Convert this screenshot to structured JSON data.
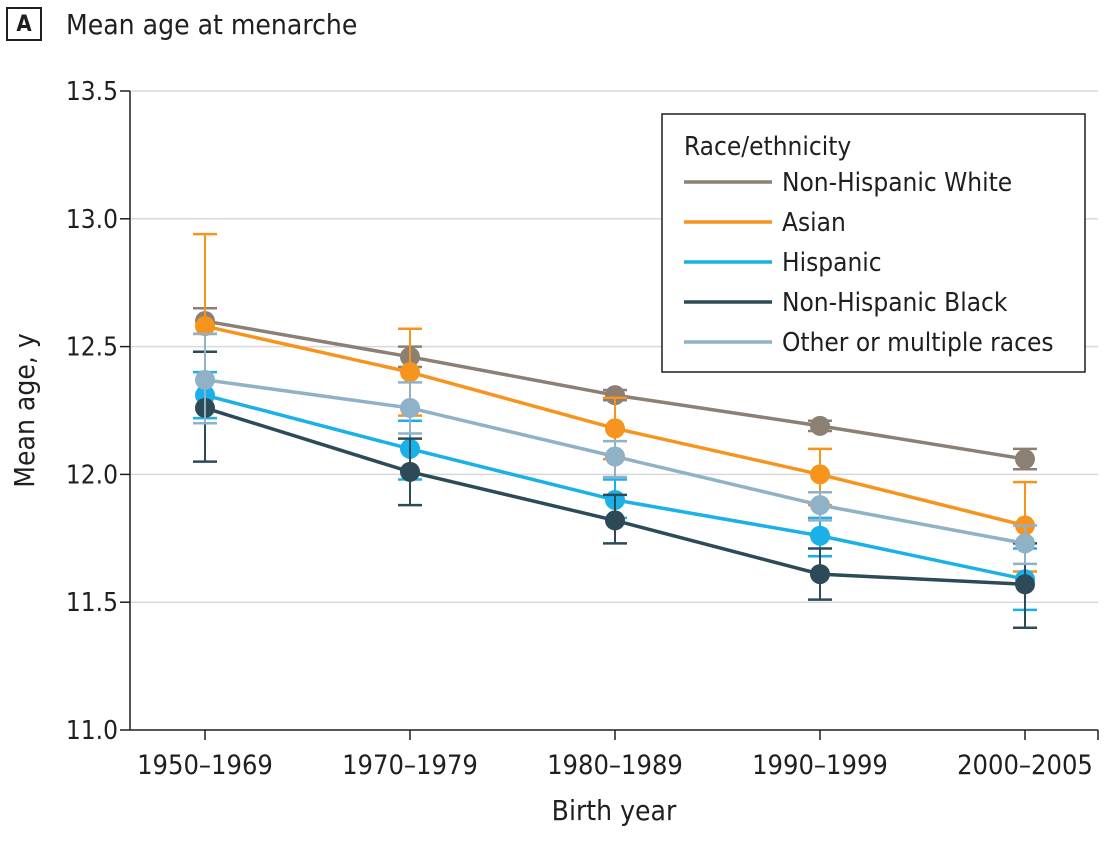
{
  "panel": {
    "letter": "A",
    "title": "Mean age at menarche"
  },
  "chart_data": {
    "type": "line",
    "title": "Mean age at menarche",
    "xlabel": "Birth year",
    "ylabel": "Mean age, y",
    "categories": [
      "1950–1969",
      "1970–1979",
      "1980–1989",
      "1990–1999",
      "2000–2005"
    ],
    "ylim": [
      11.0,
      13.5
    ],
    "yticks": [
      "11.0",
      "11.5",
      "12.0",
      "12.5",
      "13.0",
      "13.5"
    ],
    "grid": true,
    "legend": {
      "title": "Race/ethnicity",
      "position": "top-right"
    },
    "series": [
      {
        "name": "Non-Hispanic White",
        "color": "#8c7f74",
        "values": [
          12.6,
          12.46,
          12.31,
          12.19,
          12.06
        ],
        "lower": [
          12.55,
          12.42,
          12.29,
          12.17,
          12.02
        ],
        "upper": [
          12.65,
          12.5,
          12.33,
          12.21,
          12.1
        ]
      },
      {
        "name": "Asian",
        "color": "#f7941d",
        "values": [
          12.58,
          12.4,
          12.18,
          12.0,
          11.8
        ],
        "lower": [
          12.22,
          12.23,
          12.06,
          11.88,
          11.62
        ],
        "upper": [
          12.94,
          12.57,
          12.3,
          12.1,
          11.97
        ]
      },
      {
        "name": "Hispanic",
        "color": "#1ab0e8",
        "values": [
          12.31,
          12.1,
          11.9,
          11.76,
          11.59
        ],
        "lower": [
          12.22,
          11.98,
          11.83,
          11.68,
          11.47
        ],
        "upper": [
          12.4,
          12.21,
          11.98,
          11.83,
          11.71
        ]
      },
      {
        "name": "Non-Hispanic Black",
        "color": "#2d4a58",
        "values": [
          12.26,
          12.01,
          11.82,
          11.61,
          11.57
        ],
        "lower": [
          12.05,
          11.88,
          11.73,
          11.51,
          11.4
        ],
        "upper": [
          12.48,
          12.14,
          11.92,
          11.71,
          11.73
        ]
      },
      {
        "name": "Other or multiple races",
        "color": "#8fb2c6",
        "values": [
          12.37,
          12.26,
          12.07,
          11.88,
          11.73
        ],
        "lower": [
          12.2,
          12.16,
          11.99,
          11.82,
          11.65
        ],
        "upper": [
          12.55,
          12.36,
          12.13,
          11.93,
          11.8
        ]
      }
    ]
  }
}
